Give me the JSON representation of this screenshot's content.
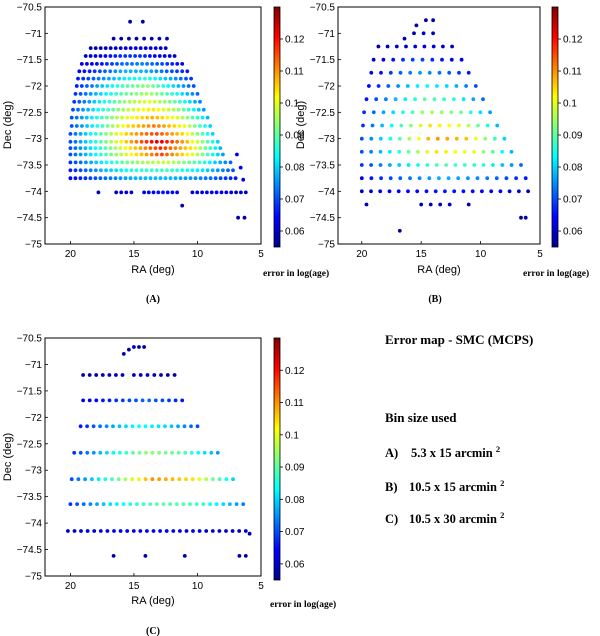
{
  "title_text": "Error map - SMC (MCPS)",
  "bin_heading": "Bin size used",
  "bins": [
    {
      "letter": "A)",
      "size": "5.3 x 15 arcmin",
      "sup": "2"
    },
    {
      "letter": "B)",
      "size": "10.5 x 15 arcmin",
      "sup": "2"
    },
    {
      "letter": "C)",
      "size": "10.5 x 30 arcmin",
      "sup": "2"
    }
  ],
  "colors": {
    "cmap": "jet",
    "axis": "#000000"
  },
  "chart_data": [
    {
      "type": "scatter",
      "panel_label": "(A)",
      "xlabel": "RA (deg)",
      "ylabel": "Dec (deg)",
      "xlim": [
        22,
        5
      ],
      "ylim": [
        -75,
        -70.5
      ],
      "xticks": [
        "20",
        "15",
        "10",
        "5"
      ],
      "yticks": [
        "-70.5",
        "-71",
        "-71.5",
        "-72",
        "-72.5",
        "-73",
        "-73.5",
        "-74",
        "-74.5",
        "-75"
      ],
      "colorbar": {
        "label": "error in log(age)",
        "range": [
          0.055,
          0.13
        ],
        "ticks": [
          "0.06",
          "0.07",
          "0.08",
          "0.09",
          "0.1",
          "0.11",
          "0.12"
        ]
      },
      "rows": [
        {
          "dec": -70.78,
          "ra_min": 15.3,
          "ra_max": 15.5,
          "step": 0.2,
          "err": [
            0.058
          ]
        },
        {
          "dec": -70.78,
          "ra_min": 14.3,
          "ra_max": 14.3,
          "step": 0.3,
          "err": [
            0.058
          ]
        },
        {
          "dec": -71.1,
          "ra_min": 16.6,
          "ra_max": 12.4,
          "step": 0.6,
          "err": [
            0.058,
            0.058,
            0.058,
            0.06
          ]
        },
        {
          "dec": -71.28,
          "ra_min": 18.4,
          "ra_max": 12.5,
          "step": 0.4,
          "err": [
            0.058,
            0.06,
            0.062,
            0.062,
            0.06
          ]
        },
        {
          "dec": -71.43,
          "ra_min": 18.8,
          "ra_max": 11.8,
          "step": 0.4,
          "err": [
            0.06,
            0.064,
            0.068,
            0.068,
            0.064,
            0.06
          ]
        },
        {
          "dec": -71.58,
          "ra_min": 19.1,
          "ra_max": 11.2,
          "step": 0.4,
          "err": [
            0.062,
            0.066,
            0.072,
            0.074,
            0.07,
            0.064
          ]
        },
        {
          "dec": -71.72,
          "ra_min": 19.3,
          "ra_max": 10.8,
          "step": 0.4,
          "err": [
            0.064,
            0.07,
            0.078,
            0.078,
            0.072,
            0.066
          ]
        },
        {
          "dec": -71.86,
          "ra_min": 19.4,
          "ra_max": 10.5,
          "step": 0.4,
          "err": [
            0.066,
            0.074,
            0.082,
            0.086,
            0.078,
            0.068
          ]
        },
        {
          "dec": -72.0,
          "ra_min": 19.5,
          "ra_max": 10.3,
          "step": 0.4,
          "err": [
            0.066,
            0.078,
            0.088,
            0.094,
            0.082,
            0.07
          ]
        },
        {
          "dec": -72.15,
          "ra_min": 19.6,
          "ra_max": 10.0,
          "step": 0.4,
          "err": [
            0.068,
            0.08,
            0.09,
            0.096,
            0.086,
            0.072
          ]
        },
        {
          "dec": -72.3,
          "ra_min": 19.7,
          "ra_max": 9.8,
          "step": 0.4,
          "err": [
            0.068,
            0.082,
            0.094,
            0.1,
            0.09,
            0.074
          ]
        },
        {
          "dec": -72.45,
          "ra_min": 19.8,
          "ra_max": 9.5,
          "step": 0.4,
          "err": [
            0.07,
            0.084,
            0.096,
            0.104,
            0.094,
            0.076
          ]
        },
        {
          "dec": -72.6,
          "ra_min": 19.9,
          "ra_max": 9.2,
          "step": 0.4,
          "err": [
            0.07,
            0.086,
            0.1,
            0.108,
            0.098,
            0.078
          ]
        },
        {
          "dec": -72.76,
          "ra_min": 19.9,
          "ra_max": 9.0,
          "step": 0.4,
          "err": [
            0.07,
            0.086,
            0.104,
            0.112,
            0.102,
            0.08
          ]
        },
        {
          "dec": -72.91,
          "ra_min": 20.0,
          "ra_max": 8.8,
          "step": 0.4,
          "err": [
            0.07,
            0.088,
            0.106,
            0.116,
            0.104,
            0.08
          ]
        },
        {
          "dec": -73.06,
          "ra_min": 20.0,
          "ra_max": 8.4,
          "step": 0.4,
          "err": [
            0.07,
            0.088,
            0.108,
            0.124,
            0.106,
            0.08
          ]
        },
        {
          "dec": -73.18,
          "ra_min": 20.0,
          "ra_max": 8.2,
          "step": 0.4,
          "err": [
            0.07,
            0.086,
            0.104,
            0.118,
            0.104,
            0.078
          ]
        },
        {
          "dec": -73.3,
          "ra_min": 20.0,
          "ra_max": 8.0,
          "step": 0.4,
          "err": [
            0.07,
            0.086,
            0.102,
            0.116,
            0.1,
            0.076
          ]
        },
        {
          "dec": -73.3,
          "ra_min": 6.9,
          "ra_max": 6.9,
          "step": 0.3,
          "err": [
            0.064
          ]
        },
        {
          "dec": -73.45,
          "ra_min": 20.0,
          "ra_max": 7.4,
          "step": 0.4,
          "err": [
            0.068,
            0.082,
            0.094,
            0.098,
            0.088,
            0.072
          ]
        },
        {
          "dec": -73.55,
          "ra_min": 6.6,
          "ra_max": 6.6,
          "step": 0.3,
          "err": [
            0.064
          ]
        },
        {
          "dec": -73.6,
          "ra_min": 20.0,
          "ra_max": 7.2,
          "step": 0.4,
          "err": [
            0.066,
            0.078,
            0.086,
            0.088,
            0.082,
            0.07
          ]
        },
        {
          "dec": -73.75,
          "ra_min": 20.0,
          "ra_max": 7.0,
          "step": 0.4,
          "err": [
            0.064,
            0.072,
            0.078,
            0.078,
            0.074,
            0.066
          ]
        },
        {
          "dec": -73.78,
          "ra_min": 6.4,
          "ra_max": 6.4,
          "step": 0.3,
          "err": [
            0.062
          ]
        },
        {
          "dec": -74.02,
          "ra_min": 17.8,
          "ra_max": 17.8,
          "step": 0.3,
          "err": [
            0.06
          ]
        },
        {
          "dec": -74.02,
          "ra_min": 16.4,
          "ra_max": 15.2,
          "step": 0.4,
          "err": [
            0.06,
            0.062
          ]
        },
        {
          "dec": -74.02,
          "ra_min": 14.2,
          "ra_max": 11.6,
          "step": 0.35,
          "err": [
            0.062,
            0.066,
            0.064
          ]
        },
        {
          "dec": -74.02,
          "ra_min": 10.4,
          "ra_max": 6.2,
          "step": 0.4,
          "err": [
            0.06,
            0.064,
            0.062,
            0.06
          ]
        },
        {
          "dec": -74.27,
          "ra_min": 11.2,
          "ra_max": 11.2,
          "step": 0.3,
          "err": [
            0.058
          ]
        },
        {
          "dec": -74.5,
          "ra_min": 6.8,
          "ra_max": 6.3,
          "step": 0.5,
          "err": [
            0.058
          ]
        }
      ]
    },
    {
      "type": "scatter",
      "panel_label": "(B)",
      "xlabel": "RA (deg)",
      "ylabel": "Dec (deg)",
      "xlim": [
        22,
        5
      ],
      "ylim": [
        -75,
        -70.5
      ],
      "xticks": [
        "20",
        "15",
        "10",
        "5"
      ],
      "yticks": [
        "-70.5",
        "-71",
        "-71.5",
        "-72",
        "-72.5",
        "-73",
        "-73.5",
        "-74",
        "-74.5",
        "-75"
      ],
      "colorbar": {
        "label": "error in log(age)",
        "range": [
          0.055,
          0.13
        ],
        "ticks": [
          "0.06",
          "0.07",
          "0.08",
          "0.09",
          "0.1",
          "0.11",
          "0.12"
        ]
      },
      "rows": [
        {
          "dec": -70.75,
          "ra_min": 14.6,
          "ra_max": 14.0,
          "step": 0.6,
          "err": [
            0.058
          ]
        },
        {
          "dec": -70.85,
          "ra_min": 15.4,
          "ra_max": 15.4,
          "step": 0.3,
          "err": [
            0.058
          ]
        },
        {
          "dec": -71.0,
          "ra_min": 15.6,
          "ra_max": 14.0,
          "step": 0.8,
          "err": [
            0.058,
            0.06
          ]
        },
        {
          "dec": -71.1,
          "ra_min": 16.4,
          "ra_max": 16.4,
          "step": 0.3,
          "err": [
            0.058
          ]
        },
        {
          "dec": -71.25,
          "ra_min": 18.6,
          "ra_max": 12.4,
          "step": 0.8,
          "err": [
            0.058,
            0.06,
            0.062,
            0.06
          ]
        },
        {
          "dec": -71.5,
          "ra_min": 19.0,
          "ra_max": 11.6,
          "step": 0.8,
          "err": [
            0.06,
            0.066,
            0.07,
            0.066,
            0.062
          ]
        },
        {
          "dec": -71.75,
          "ra_min": 19.2,
          "ra_max": 11.0,
          "step": 0.8,
          "err": [
            0.062,
            0.07,
            0.076,
            0.072,
            0.066
          ]
        },
        {
          "dec": -72.0,
          "ra_min": 19.4,
          "ra_max": 10.4,
          "step": 0.8,
          "err": [
            0.064,
            0.074,
            0.084,
            0.08,
            0.07
          ]
        },
        {
          "dec": -72.25,
          "ra_min": 19.6,
          "ra_max": 9.8,
          "step": 0.8,
          "err": [
            0.066,
            0.078,
            0.09,
            0.086,
            0.072
          ]
        },
        {
          "dec": -72.5,
          "ra_min": 19.8,
          "ra_max": 9.2,
          "step": 0.8,
          "err": [
            0.068,
            0.082,
            0.096,
            0.092,
            0.076
          ]
        },
        {
          "dec": -72.75,
          "ra_min": 19.9,
          "ra_max": 8.6,
          "step": 0.8,
          "err": [
            0.068,
            0.086,
            0.104,
            0.1,
            0.078
          ]
        },
        {
          "dec": -73.0,
          "ra_min": 20.0,
          "ra_max": 8.0,
          "step": 0.8,
          "err": [
            0.07,
            0.088,
            0.11,
            0.106,
            0.08
          ]
        },
        {
          "dec": -73.25,
          "ra_min": 20.0,
          "ra_max": 7.4,
          "step": 0.8,
          "err": [
            0.07,
            0.086,
            0.104,
            0.1,
            0.078
          ]
        },
        {
          "dec": -73.5,
          "ra_min": 20.0,
          "ra_max": 6.6,
          "step": 0.8,
          "err": [
            0.068,
            0.08,
            0.09,
            0.086,
            0.072
          ]
        },
        {
          "dec": -73.75,
          "ra_min": 20.0,
          "ra_max": 6.2,
          "step": 0.8,
          "err": [
            0.064,
            0.072,
            0.078,
            0.074,
            0.066
          ]
        },
        {
          "dec": -74.0,
          "ra_min": 20.0,
          "ra_max": 6.0,
          "step": 0.8,
          "err": [
            0.06,
            0.064,
            0.066,
            0.064,
            0.06
          ]
        },
        {
          "dec": -74.25,
          "ra_min": 19.6,
          "ra_max": 19.6,
          "step": 0.3,
          "err": [
            0.058
          ]
        },
        {
          "dec": -74.25,
          "ra_min": 15.0,
          "ra_max": 12.6,
          "step": 0.8,
          "err": [
            0.058,
            0.06
          ]
        },
        {
          "dec": -74.25,
          "ra_min": 11.0,
          "ra_max": 11.0,
          "step": 0.3,
          "err": [
            0.058
          ]
        },
        {
          "dec": -74.5,
          "ra_min": 6.6,
          "ra_max": 6.2,
          "step": 0.4,
          "err": [
            0.058
          ]
        },
        {
          "dec": -74.75,
          "ra_min": 16.8,
          "ra_max": 16.8,
          "step": 0.3,
          "err": [
            0.058
          ]
        }
      ]
    },
    {
      "type": "scatter",
      "panel_label": "(C)",
      "xlabel": "RA (deg)",
      "ylabel": "Dec (deg)",
      "xlim": [
        22,
        5
      ],
      "ylim": [
        -75,
        -70.5
      ],
      "xticks": [
        "20",
        "15",
        "10",
        "5"
      ],
      "yticks": [
        "-70.5",
        "-71",
        "-71.5",
        "-72",
        "-72.5",
        "-73",
        "-73.5",
        "-74",
        "-74.5",
        "-75"
      ],
      "colorbar": {
        "label": "error in log(age)",
        "range": [
          0.055,
          0.13
        ],
        "ticks": [
          "0.06",
          "0.07",
          "0.08",
          "0.09",
          "0.1",
          "0.11",
          "0.12"
        ]
      },
      "rows": [
        {
          "dec": -70.67,
          "ra_min": 15.0,
          "ra_max": 14.2,
          "step": 0.4,
          "err": [
            0.058
          ]
        },
        {
          "dec": -70.72,
          "ra_min": 15.4,
          "ra_max": 15.4,
          "step": 0.3,
          "err": [
            0.058
          ]
        },
        {
          "dec": -70.8,
          "ra_min": 15.8,
          "ra_max": 15.8,
          "step": 0.3,
          "err": [
            0.058
          ]
        },
        {
          "dec": -71.2,
          "ra_min": 19.0,
          "ra_max": 15.9,
          "step": 0.52,
          "err": [
            0.058,
            0.06
          ]
        },
        {
          "dec": -71.2,
          "ra_min": 15.0,
          "ra_max": 11.8,
          "step": 0.52,
          "err": [
            0.06,
            0.058
          ]
        },
        {
          "dec": -71.68,
          "ra_min": 19.0,
          "ra_max": 11.2,
          "step": 0.52,
          "err": [
            0.062,
            0.068,
            0.072,
            0.066
          ]
        },
        {
          "dec": -72.17,
          "ra_min": 19.2,
          "ra_max": 10.0,
          "step": 0.52,
          "err": [
            0.066,
            0.076,
            0.084,
            0.08,
            0.07
          ]
        },
        {
          "dec": -72.67,
          "ra_min": 19.7,
          "ra_max": 8.4,
          "step": 0.52,
          "err": [
            0.068,
            0.082,
            0.094,
            0.09,
            0.076
          ]
        },
        {
          "dec": -73.17,
          "ra_min": 19.9,
          "ra_max": 7.2,
          "step": 0.52,
          "err": [
            0.07,
            0.088,
            0.11,
            0.104,
            0.08
          ]
        },
        {
          "dec": -73.64,
          "ra_min": 20.0,
          "ra_max": 6.4,
          "step": 0.52,
          "err": [
            0.068,
            0.082,
            0.09,
            0.088,
            0.074
          ]
        },
        {
          "dec": -74.15,
          "ra_min": 20.2,
          "ra_max": 6.2,
          "step": 0.52,
          "err": [
            0.06,
            0.064,
            0.064,
            0.062,
            0.06
          ]
        },
        {
          "dec": -74.2,
          "ra_min": 5.9,
          "ra_max": 5.9,
          "step": 0.3,
          "err": [
            0.058
          ]
        },
        {
          "dec": -74.62,
          "ra_min": 16.6,
          "ra_max": 16.6,
          "step": 0.3,
          "err": [
            0.058
          ]
        },
        {
          "dec": -74.62,
          "ra_min": 14.1,
          "ra_max": 14.1,
          "step": 0.3,
          "err": [
            0.058
          ]
        },
        {
          "dec": -74.62,
          "ra_min": 11.0,
          "ra_max": 11.0,
          "step": 0.3,
          "err": [
            0.058
          ]
        },
        {
          "dec": -74.62,
          "ra_min": 6.7,
          "ra_max": 6.2,
          "step": 0.5,
          "err": [
            0.058
          ]
        }
      ]
    }
  ]
}
